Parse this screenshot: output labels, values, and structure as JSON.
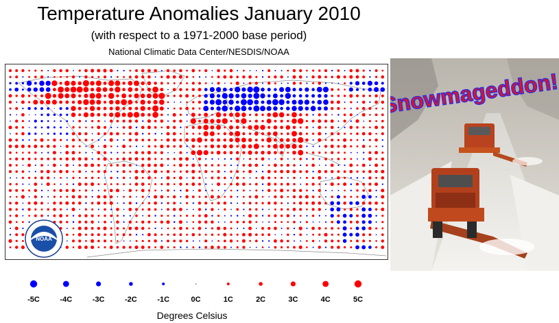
{
  "header": {
    "title": "Temperature Anomalies January 2010",
    "subtitle": "(with respect to a 1971-2000 base period)",
    "source": "National Climatic Data Center/NESDIS/NOAA"
  },
  "legend": {
    "items": [
      {
        "label": "-5C",
        "value": -5
      },
      {
        "label": "-4C",
        "value": -4
      },
      {
        "label": "-3C",
        "value": -3
      },
      {
        "label": "-2C",
        "value": -2
      },
      {
        "label": "-1C",
        "value": -1
      },
      {
        "label": "0C",
        "value": 0
      },
      {
        "label": "1C",
        "value": 1
      },
      {
        "label": "2C",
        "value": 2
      },
      {
        "label": "3C",
        "value": 3
      },
      {
        "label": "4C",
        "value": 4
      },
      {
        "label": "5C",
        "value": 5
      }
    ],
    "units": "Degrees Celsius",
    "warm_color": "#ff0000",
    "cold_color": "#0000ff"
  },
  "logo": {
    "text": "NOAA"
  },
  "photo": {
    "caption": "Snowmageddon!",
    "caption_color": "#e8101e",
    "caption_outline_color": "#3a2bd6"
  }
}
